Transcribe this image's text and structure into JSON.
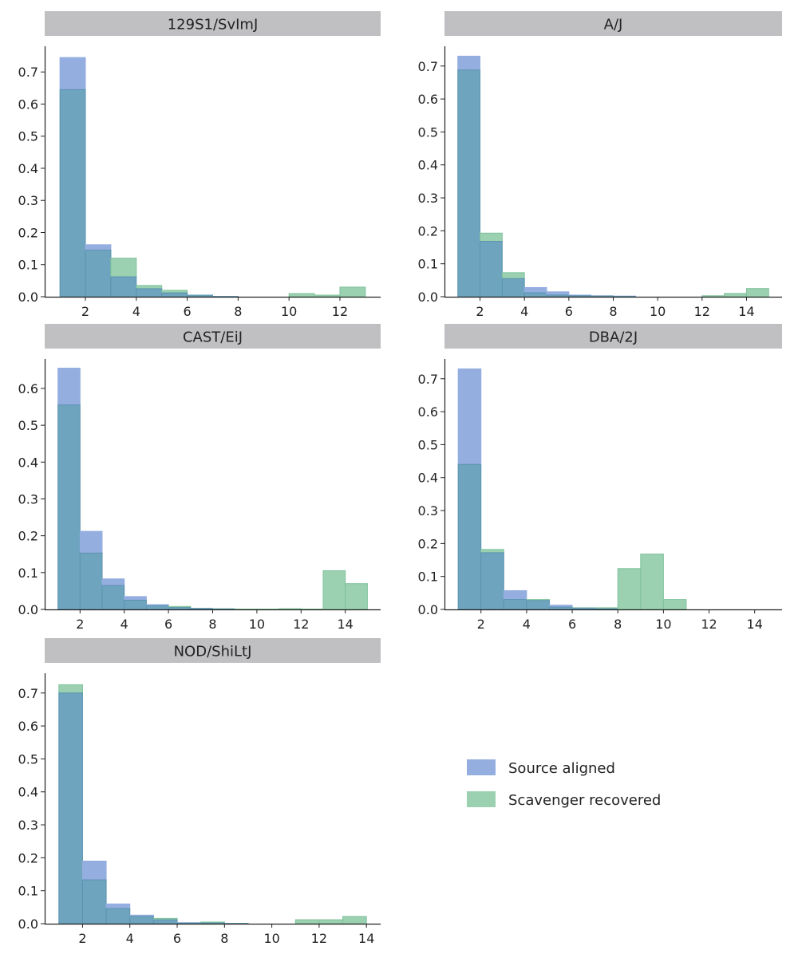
{
  "chart_data": [
    {
      "type": "bar",
      "title": "129S1/SvImJ",
      "x_ticks": [
        2,
        4,
        6,
        8,
        10,
        12
      ],
      "y_ticks": [
        0.0,
        0.1,
        0.2,
        0.3,
        0.4,
        0.5,
        0.6,
        0.7
      ],
      "xlim": [
        0.4,
        13.6
      ],
      "ylim": [
        0,
        0.78
      ],
      "series": [
        {
          "name": "Source aligned",
          "bins": [
            1,
            2,
            3,
            4,
            5,
            6,
            7,
            8,
            9,
            10,
            11,
            12,
            13
          ],
          "values": [
            0.745,
            0.162,
            0.062,
            0.025,
            0.012,
            0.005,
            0.001,
            0,
            0,
            0,
            0,
            0,
            0
          ]
        },
        {
          "name": "Scavenger recovered",
          "bins": [
            1,
            2,
            3,
            4,
            5,
            6,
            7,
            8,
            9,
            10,
            11,
            12,
            13
          ],
          "values": [
            0.645,
            0.145,
            0.12,
            0.035,
            0.02,
            0.005,
            0.001,
            0,
            0,
            0.01,
            0.005,
            0.03,
            0
          ]
        }
      ]
    },
    {
      "type": "bar",
      "title": "A/J",
      "x_ticks": [
        2,
        4,
        6,
        8,
        10,
        12,
        14
      ],
      "y_ticks": [
        0.0,
        0.1,
        0.2,
        0.3,
        0.4,
        0.5,
        0.6,
        0.7
      ],
      "xlim": [
        0.4,
        15.6
      ],
      "ylim": [
        0,
        0.76
      ],
      "series": [
        {
          "name": "Source aligned",
          "bins": [
            1,
            2,
            3,
            4,
            5,
            6,
            7,
            8,
            9,
            10,
            11,
            12,
            13,
            14,
            15
          ],
          "values": [
            0.73,
            0.168,
            0.055,
            0.028,
            0.015,
            0.005,
            0.003,
            0.002,
            0,
            0,
            0,
            0,
            0,
            0,
            0
          ]
        },
        {
          "name": "Scavenger recovered",
          "bins": [
            1,
            2,
            3,
            4,
            5,
            6,
            7,
            8,
            9,
            10,
            11,
            12,
            13,
            14,
            15
          ],
          "values": [
            0.688,
            0.193,
            0.073,
            0.012,
            0.005,
            0.003,
            0.002,
            0.001,
            0,
            0,
            0,
            0.003,
            0.01,
            0.025,
            0
          ]
        }
      ]
    },
    {
      "type": "bar",
      "title": "CAST/EiJ",
      "x_ticks": [
        2,
        4,
        6,
        8,
        10,
        12,
        14
      ],
      "y_ticks": [
        0.0,
        0.1,
        0.2,
        0.3,
        0.4,
        0.5,
        0.6
      ],
      "xlim": [
        0.4,
        15.6
      ],
      "ylim": [
        0,
        0.68
      ],
      "series": [
        {
          "name": "Source aligned",
          "bins": [
            1,
            2,
            3,
            4,
            5,
            6,
            7,
            8,
            9,
            10,
            11,
            12,
            13,
            14,
            15
          ],
          "values": [
            0.655,
            0.212,
            0.083,
            0.035,
            0.013,
            0.005,
            0.003,
            0.001,
            0,
            0,
            0,
            0,
            0,
            0,
            0
          ]
        },
        {
          "name": "Scavenger recovered",
          "bins": [
            1,
            2,
            3,
            4,
            5,
            6,
            7,
            8,
            9,
            10,
            11,
            12,
            13,
            14,
            15
          ],
          "values": [
            0.555,
            0.153,
            0.065,
            0.025,
            0.01,
            0.008,
            0.003,
            0.002,
            0.001,
            0.001,
            0.002,
            0.001,
            0.105,
            0.07,
            0
          ]
        }
      ]
    },
    {
      "type": "bar",
      "title": "DBA/2J",
      "x_ticks": [
        2,
        4,
        6,
        8,
        10,
        12,
        14
      ],
      "y_ticks": [
        0.0,
        0.1,
        0.2,
        0.3,
        0.4,
        0.5,
        0.6,
        0.7
      ],
      "xlim": [
        0.4,
        15.2
      ],
      "ylim": [
        0,
        0.76
      ],
      "series": [
        {
          "name": "Source aligned",
          "bins": [
            1,
            2,
            3,
            4,
            5,
            6,
            7,
            8,
            9,
            10,
            11,
            12,
            13,
            14
          ],
          "values": [
            0.73,
            0.172,
            0.057,
            0.027,
            0.013,
            0.004,
            0.002,
            0,
            0,
            0,
            0,
            0,
            0,
            0
          ]
        },
        {
          "name": "Scavenger recovered",
          "bins": [
            1,
            2,
            3,
            4,
            5,
            6,
            7,
            8,
            9,
            10,
            11,
            12,
            13,
            14
          ],
          "values": [
            0.44,
            0.182,
            0.03,
            0.03,
            0.007,
            0.005,
            0.005,
            0.124,
            0.168,
            0.03,
            0,
            0,
            0,
            0
          ]
        }
      ]
    },
    {
      "type": "bar",
      "title": "NOD/ShiLtJ",
      "x_ticks": [
        2,
        4,
        6,
        8,
        10,
        12,
        14
      ],
      "y_ticks": [
        0.0,
        0.1,
        0.2,
        0.3,
        0.4,
        0.5,
        0.6,
        0.7
      ],
      "xlim": [
        0.4,
        14.6
      ],
      "ylim": [
        0,
        0.76
      ],
      "series": [
        {
          "name": "Source aligned",
          "bins": [
            1,
            2,
            3,
            4,
            5,
            6,
            7,
            8,
            9,
            10,
            11,
            12,
            13,
            14
          ],
          "values": [
            0.7,
            0.19,
            0.06,
            0.026,
            0.012,
            0.003,
            0.002,
            0.001,
            0,
            0,
            0,
            0,
            0,
            0
          ]
        },
        {
          "name": "Scavenger recovered",
          "bins": [
            1,
            2,
            3,
            4,
            5,
            6,
            7,
            8,
            9,
            10,
            11,
            12,
            13,
            14
          ],
          "values": [
            0.725,
            0.133,
            0.046,
            0.022,
            0.016,
            0.002,
            0.005,
            0.001,
            0,
            0,
            0.012,
            0.012,
            0.022,
            0
          ]
        }
      ]
    }
  ],
  "legend": {
    "placement": "bottom-right",
    "items": [
      {
        "label": "Source aligned",
        "color": "#95aee0"
      },
      {
        "label": "Scavenger recovered",
        "color": "#9bd1b1"
      }
    ]
  },
  "colors": {
    "source": "#95aee0",
    "scavenger": "#9bd1b1",
    "overlap": "#6fa4be",
    "title_bar": "#c0c0c3",
    "axis": "#222222"
  }
}
